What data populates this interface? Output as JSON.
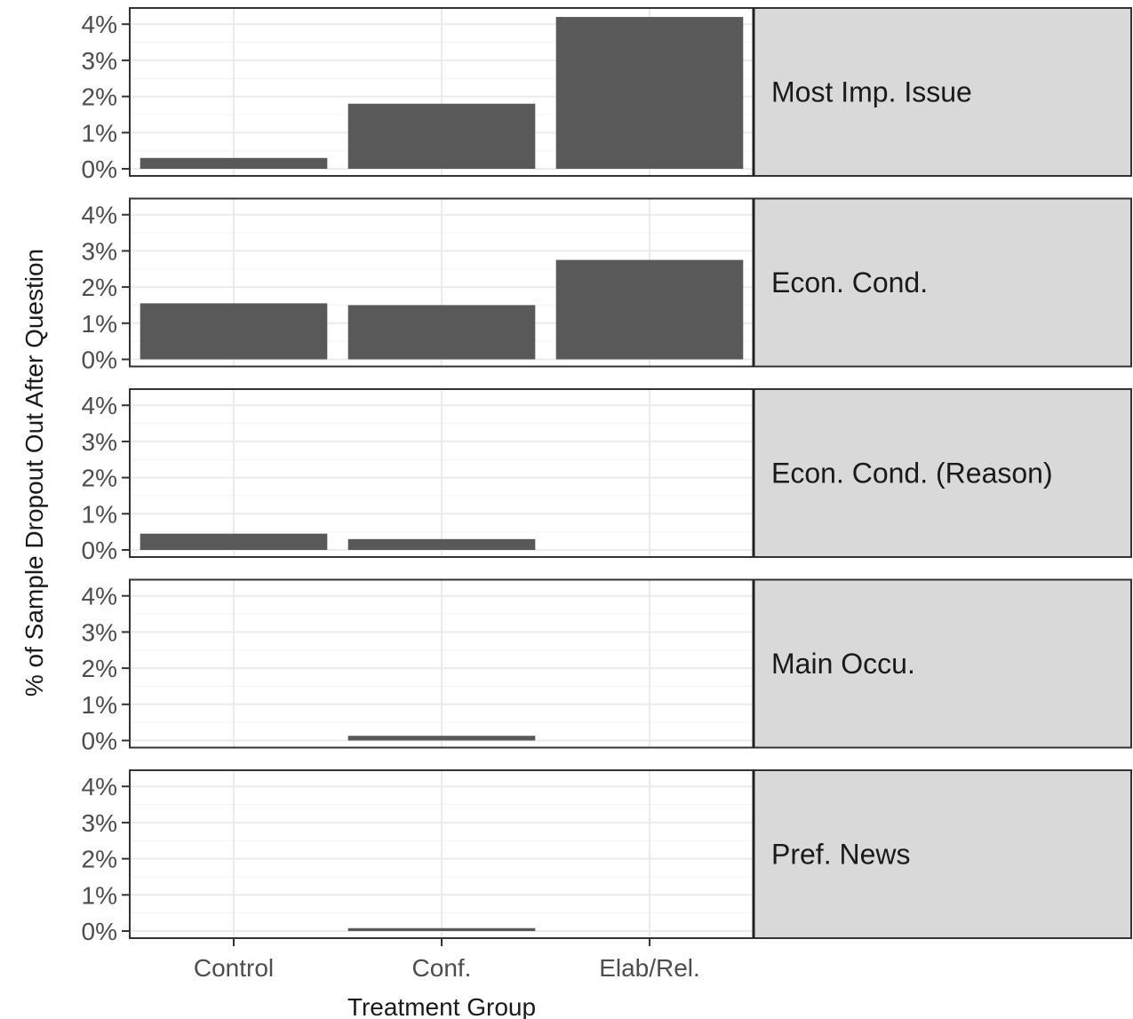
{
  "chart_data": {
    "type": "bar",
    "xlabel": "Treatment Group",
    "ylabel": "% of Sample Dropout Out After Question",
    "categories": [
      "Control",
      "Conf.",
      "Elab/Rel."
    ],
    "ylim": [
      0,
      4.3
    ],
    "yticks": [
      0,
      1,
      2,
      3,
      4
    ],
    "ytick_labels": [
      "0%",
      "1%",
      "2%",
      "3%",
      "4%"
    ],
    "grid": true,
    "colors": {
      "bar": "#595959",
      "strip": "#d9d9d9",
      "panel_border": "#333333",
      "grid_major": "#ebebeb"
    },
    "facets": [
      {
        "label": "Most Imp. Issue",
        "values": [
          0.3,
          1.8,
          4.2
        ]
      },
      {
        "label": "Econ. Cond.",
        "values": [
          1.55,
          1.5,
          2.75
        ]
      },
      {
        "label": "Econ. Cond. (Reason)",
        "values": [
          0.45,
          0.3,
          0
        ]
      },
      {
        "label": "Main Occu.",
        "values": [
          0,
          0.13,
          0
        ]
      },
      {
        "label": "Pref. News",
        "values": [
          0,
          0.08,
          0
        ]
      }
    ]
  }
}
